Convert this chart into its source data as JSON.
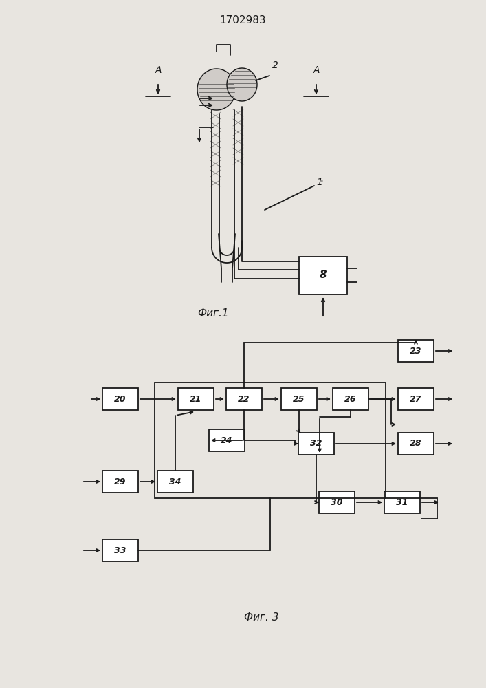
{
  "title": "1702983",
  "fig1_label": "Фиг.1",
  "fig3_label": "Фиг. 3",
  "bg_color": "#e8e5e0",
  "line_color": "#1a1a1a"
}
